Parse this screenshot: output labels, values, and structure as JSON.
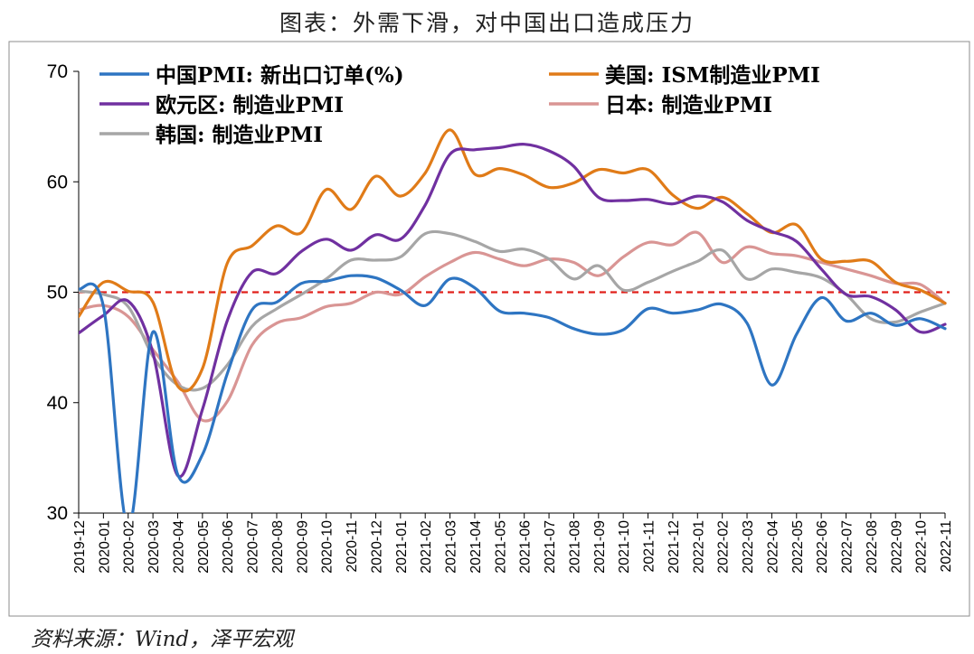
{
  "header": {
    "title": "图表：外需下滑，对中国出口造成压力"
  },
  "footer": {
    "source": "资料来源：Wind，泽平宏观"
  },
  "chart_data": {
    "type": "line",
    "title": "图表：外需下滑，对中国出口造成压力",
    "xlabel": "",
    "ylabel": "",
    "ylim": [
      30,
      70
    ],
    "yticks": [
      30,
      40,
      50,
      60,
      70
    ],
    "grid": false,
    "legend_position": "top",
    "reference_line": {
      "y": 50,
      "color": "#e0201b",
      "style": "dashed"
    },
    "categories": [
      "2019-12",
      "2020-01",
      "2020-02",
      "2020-03",
      "2020-04",
      "2020-05",
      "2020-06",
      "2020-07",
      "2020-08",
      "2020-09",
      "2020-10",
      "2020-11",
      "2020-12",
      "2021-01",
      "2021-02",
      "2021-03",
      "2021-04",
      "2021-05",
      "2021-06",
      "2021-07",
      "2021-08",
      "2021-09",
      "2021-10",
      "2021-11",
      "2021-12",
      "2022-01",
      "2022-02",
      "2022-03",
      "2022-04",
      "2022-05",
      "2022-06",
      "2022-07",
      "2022-08",
      "2022-09",
      "2022-10",
      "2022-11"
    ],
    "series": [
      {
        "name": "中国PMI: 新出口订单(%)",
        "color": "#2e75c2",
        "values": [
          50.3,
          48.7,
          28.7,
          46.4,
          33.5,
          35.3,
          42.6,
          48.4,
          49.1,
          50.8,
          51.0,
          51.5,
          51.3,
          50.2,
          48.8,
          51.2,
          50.4,
          48.3,
          48.1,
          47.7,
          46.7,
          46.2,
          46.6,
          48.5,
          48.1,
          48.4,
          48.9,
          47.2,
          41.6,
          46.2,
          49.5,
          47.4,
          48.1,
          47.0,
          47.6,
          46.7
        ]
      },
      {
        "name": "美国: ISM制造业PMI",
        "color": "#e07b18",
        "values": [
          47.8,
          50.9,
          50.1,
          49.1,
          41.5,
          43.1,
          52.6,
          54.2,
          56.0,
          55.4,
          59.3,
          57.5,
          60.5,
          58.7,
          60.8,
          64.7,
          60.7,
          61.2,
          60.6,
          59.5,
          59.9,
          61.1,
          60.8,
          61.1,
          58.8,
          57.6,
          58.6,
          57.1,
          55.4,
          56.1,
          53.0,
          52.8,
          52.8,
          50.9,
          50.2,
          49.0
        ]
      },
      {
        "name": "欧元区: 制造业PMI",
        "color": "#7030a0",
        "values": [
          46.3,
          47.9,
          49.2,
          44.5,
          33.4,
          39.4,
          47.4,
          51.8,
          51.7,
          53.7,
          54.8,
          53.8,
          55.2,
          54.8,
          57.9,
          62.5,
          62.9,
          63.1,
          63.4,
          62.8,
          61.4,
          58.6,
          58.3,
          58.4,
          58.0,
          58.7,
          58.2,
          56.5,
          55.5,
          54.6,
          52.1,
          49.8,
          49.6,
          48.4,
          46.4,
          47.1
        ]
      },
      {
        "name": "日本: 制造业PMI",
        "color": "#d99594",
        "values": [
          48.4,
          48.8,
          47.8,
          44.8,
          41.9,
          38.4,
          40.1,
          45.2,
          47.2,
          47.7,
          48.7,
          49.0,
          50.0,
          49.8,
          51.4,
          52.7,
          53.6,
          53.0,
          52.4,
          53.0,
          52.7,
          51.5,
          53.2,
          54.5,
          54.3,
          55.4,
          52.7,
          54.1,
          53.5,
          53.3,
          52.7,
          52.1,
          51.5,
          50.8,
          50.7,
          49.0
        ]
      },
      {
        "name": "韩国: 制造业PMI",
        "color": "#a6a6a6",
        "values": [
          50.1,
          49.8,
          48.7,
          44.2,
          41.6,
          41.3,
          43.4,
          46.9,
          48.5,
          49.8,
          51.2,
          52.9,
          52.9,
          53.2,
          55.3,
          55.3,
          54.6,
          53.7,
          53.9,
          53.0,
          51.2,
          52.4,
          50.2,
          50.9,
          51.9,
          52.8,
          53.8,
          51.2,
          52.1,
          51.8,
          51.3,
          49.8,
          47.6,
          47.3,
          48.2,
          49.0
        ]
      }
    ]
  }
}
